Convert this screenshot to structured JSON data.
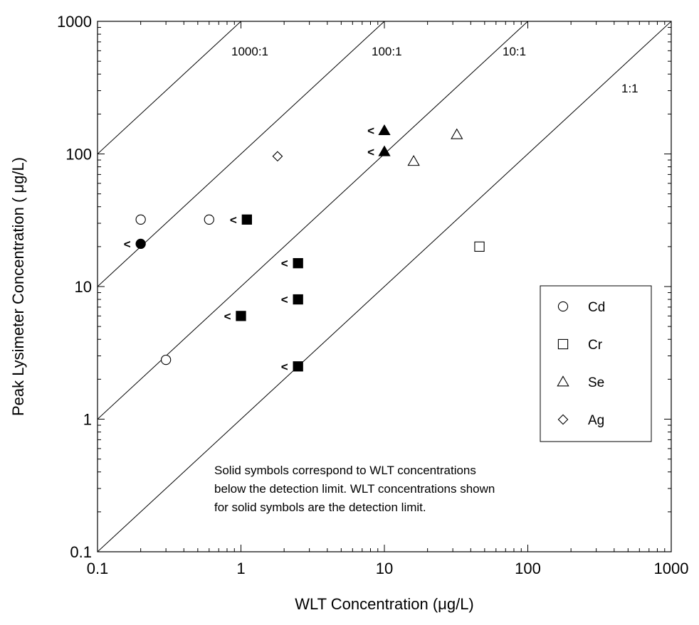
{
  "chart_data": {
    "type": "scatter",
    "x_scale": "log",
    "y_scale": "log",
    "xlim": [
      0.1,
      1000
    ],
    "ylim": [
      0.1,
      1000
    ],
    "xlabel": "WLT Concentration (μg/L)",
    "ylabel": "Peak Lysimeter Concentration ( μg/L)",
    "x_ticks": [
      0.1,
      1,
      10,
      100,
      1000
    ],
    "x_tick_labels": [
      "0.1",
      "1",
      "10",
      "100",
      "1000"
    ],
    "y_ticks": [
      0.1,
      1,
      10,
      100,
      1000
    ],
    "y_tick_labels": [
      "0.1",
      "1",
      "10",
      "100",
      "1000"
    ],
    "ratio_lines": [
      {
        "label": "1000:1",
        "ratio": 1000
      },
      {
        "label": "100:1",
        "ratio": 100
      },
      {
        "label": "10:1",
        "ratio": 10
      },
      {
        "label": "1:1",
        "ratio": 1
      }
    ],
    "series": [
      {
        "name": "Cd",
        "marker": "circle",
        "points": [
          {
            "x": 0.2,
            "y": 32,
            "filled": false,
            "below_dl": false
          },
          {
            "x": 0.6,
            "y": 32,
            "filled": false,
            "below_dl": false
          },
          {
            "x": 0.3,
            "y": 2.8,
            "filled": false,
            "below_dl": false
          },
          {
            "x": 0.2,
            "y": 21,
            "filled": true,
            "below_dl": true
          }
        ]
      },
      {
        "name": "Cr",
        "marker": "square",
        "points": [
          {
            "x": 46,
            "y": 20,
            "filled": false,
            "below_dl": false
          },
          {
            "x": 1.1,
            "y": 32,
            "filled": true,
            "below_dl": true
          },
          {
            "x": 2.5,
            "y": 15,
            "filled": true,
            "below_dl": true
          },
          {
            "x": 2.5,
            "y": 8,
            "filled": true,
            "below_dl": true
          },
          {
            "x": 1.0,
            "y": 6,
            "filled": true,
            "below_dl": true
          },
          {
            "x": 2.5,
            "y": 2.5,
            "filled": true,
            "below_dl": true
          }
        ]
      },
      {
        "name": "Se",
        "marker": "triangle",
        "points": [
          {
            "x": 16,
            "y": 88,
            "filled": false,
            "below_dl": false
          },
          {
            "x": 32,
            "y": 140,
            "filled": false,
            "below_dl": false
          },
          {
            "x": 10,
            "y": 150,
            "filled": true,
            "below_dl": true
          },
          {
            "x": 10,
            "y": 104,
            "filled": true,
            "below_dl": true
          }
        ]
      },
      {
        "name": "Ag",
        "marker": "diamond",
        "points": [
          {
            "x": 1.8,
            "y": 96,
            "filled": false,
            "below_dl": false
          }
        ]
      }
    ],
    "below_detection_marker": "<",
    "legend": {
      "placement": "right",
      "entries": [
        "Cd",
        "Cr",
        "Se",
        "Ag"
      ]
    },
    "annotation": [
      "Solid symbols correspond to WLT concentrations",
      "below the detection limit.  WLT concentrations shown",
      "for solid symbols are the detection limit."
    ],
    "grid": false
  }
}
